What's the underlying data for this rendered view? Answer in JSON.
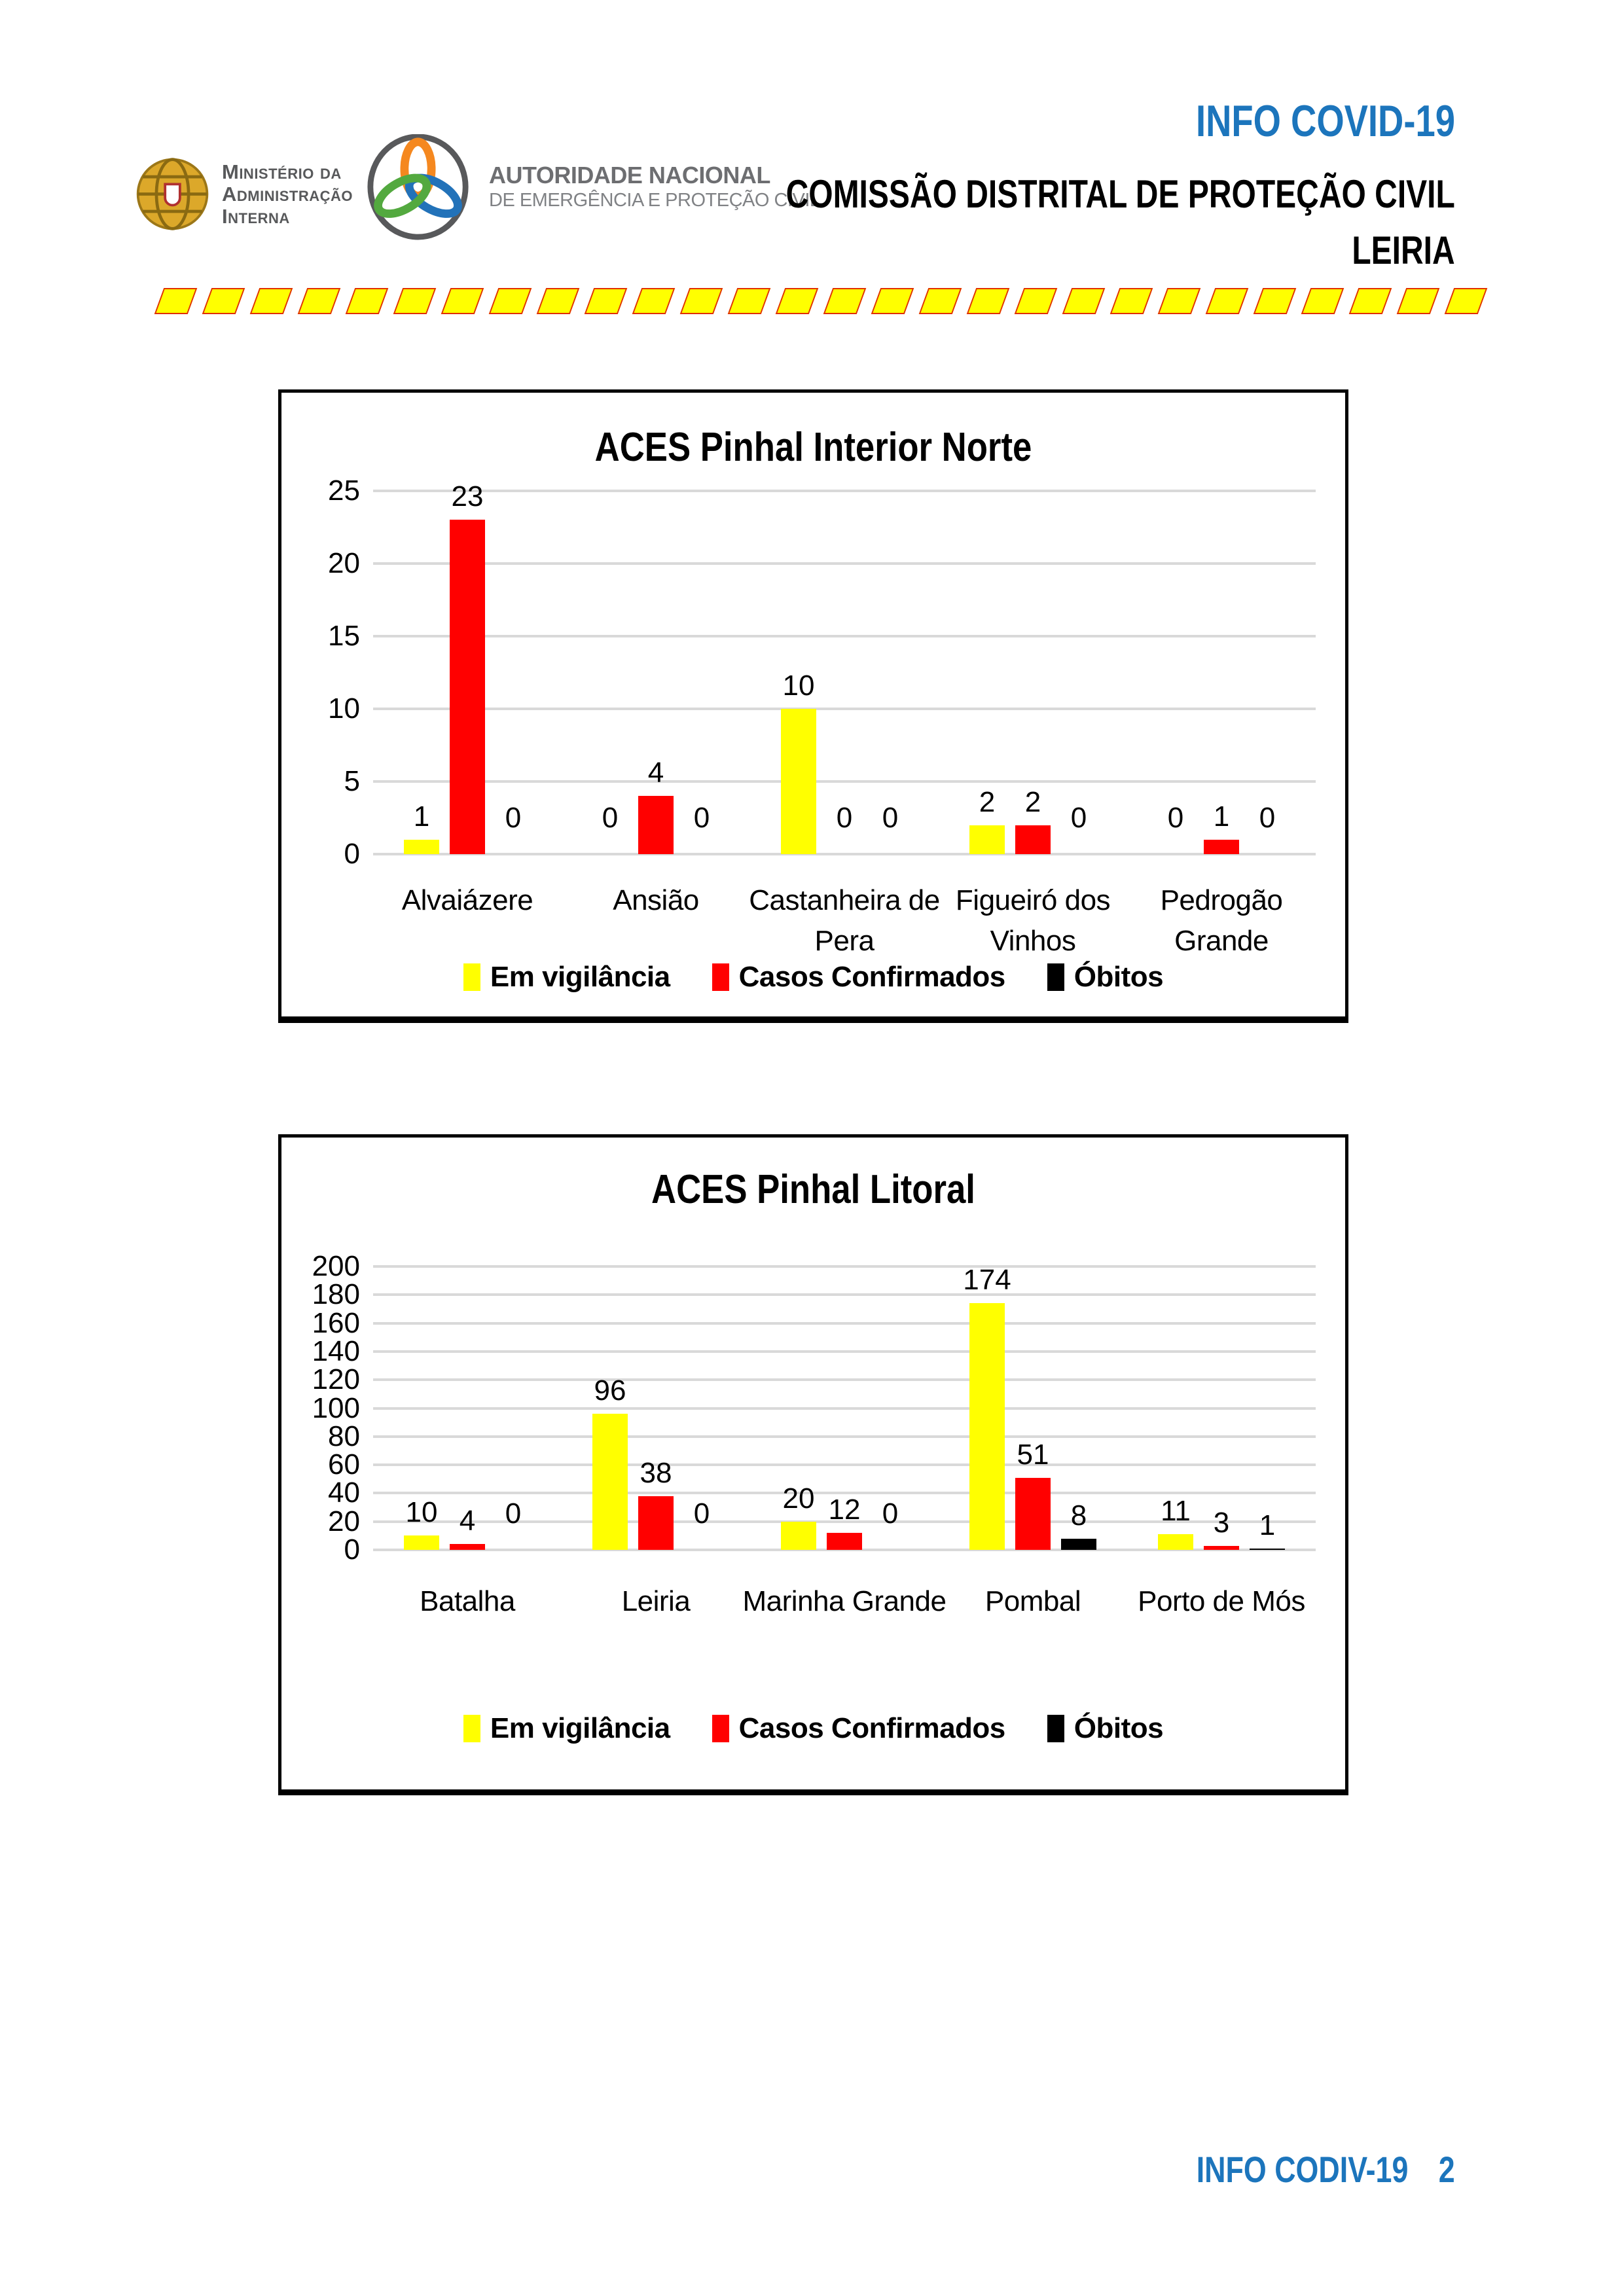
{
  "header": {
    "mai_logo": {
      "line1": "Ministério da",
      "line2": "Administração",
      "line3": "Interna"
    },
    "anepc_logo": {
      "line1": "AUTORIDADE NACIONAL",
      "line2": "DE EMERGÊNCIA E PROTEÇÃO CIVIL"
    },
    "info_title": "INFO COVID-19",
    "commission_title": "COMISSÃO DISTRITAL DE PROTEÇÃO CIVIL",
    "commission_city": "LEIRIA"
  },
  "divider": {
    "dash_count": 28
  },
  "colors": {
    "accent_blue": "#1C75BC",
    "vigilancia_yellow": "#FFFF00",
    "confirmados_red": "#FF0000",
    "obitos_black": "#000000",
    "dash_fill": "#FFFF00",
    "dash_border": "#E03000",
    "gridline_gray": "#D9D9D9"
  },
  "chart_data": [
    {
      "type": "bar",
      "title": "ACES Pinhal Interior Norte",
      "categories": [
        "Alvaiázere",
        "Ansião",
        "Castanheira de\nPera",
        "Figueiró dos\nVinhos",
        "Pedrogão\nGrande"
      ],
      "series": [
        {
          "name": "Em vigilância",
          "color": "#FFFF00",
          "values": [
            1,
            0,
            10,
            2,
            0
          ]
        },
        {
          "name": "Casos Confirmados",
          "color": "#FF0000",
          "values": [
            23,
            4,
            0,
            2,
            1
          ]
        },
        {
          "name": "Óbitos",
          "color": "#000000",
          "values": [
            0,
            0,
            0,
            0,
            0
          ]
        }
      ],
      "ylim": [
        0,
        25
      ],
      "ytick_step": 5,
      "grid": true,
      "legend_position": "bottom"
    },
    {
      "type": "bar",
      "title": "ACES Pinhal Litoral",
      "categories": [
        "Batalha",
        "Leiria",
        "Marinha Grande",
        "Pombal",
        "Porto de Mós"
      ],
      "series": [
        {
          "name": "Em vigilância",
          "color": "#FFFF00",
          "values": [
            10,
            96,
            20,
            174,
            11
          ]
        },
        {
          "name": "Casos Confirmados",
          "color": "#FF0000",
          "values": [
            4,
            38,
            12,
            51,
            3
          ]
        },
        {
          "name": "Óbitos",
          "color": "#000000",
          "values": [
            0,
            0,
            0,
            8,
            1
          ]
        }
      ],
      "ylim": [
        0,
        200
      ],
      "ytick_step": 20,
      "grid": true,
      "legend_position": "bottom"
    }
  ],
  "footer": {
    "label": "INFO CODIV-19",
    "page_number": "2"
  }
}
